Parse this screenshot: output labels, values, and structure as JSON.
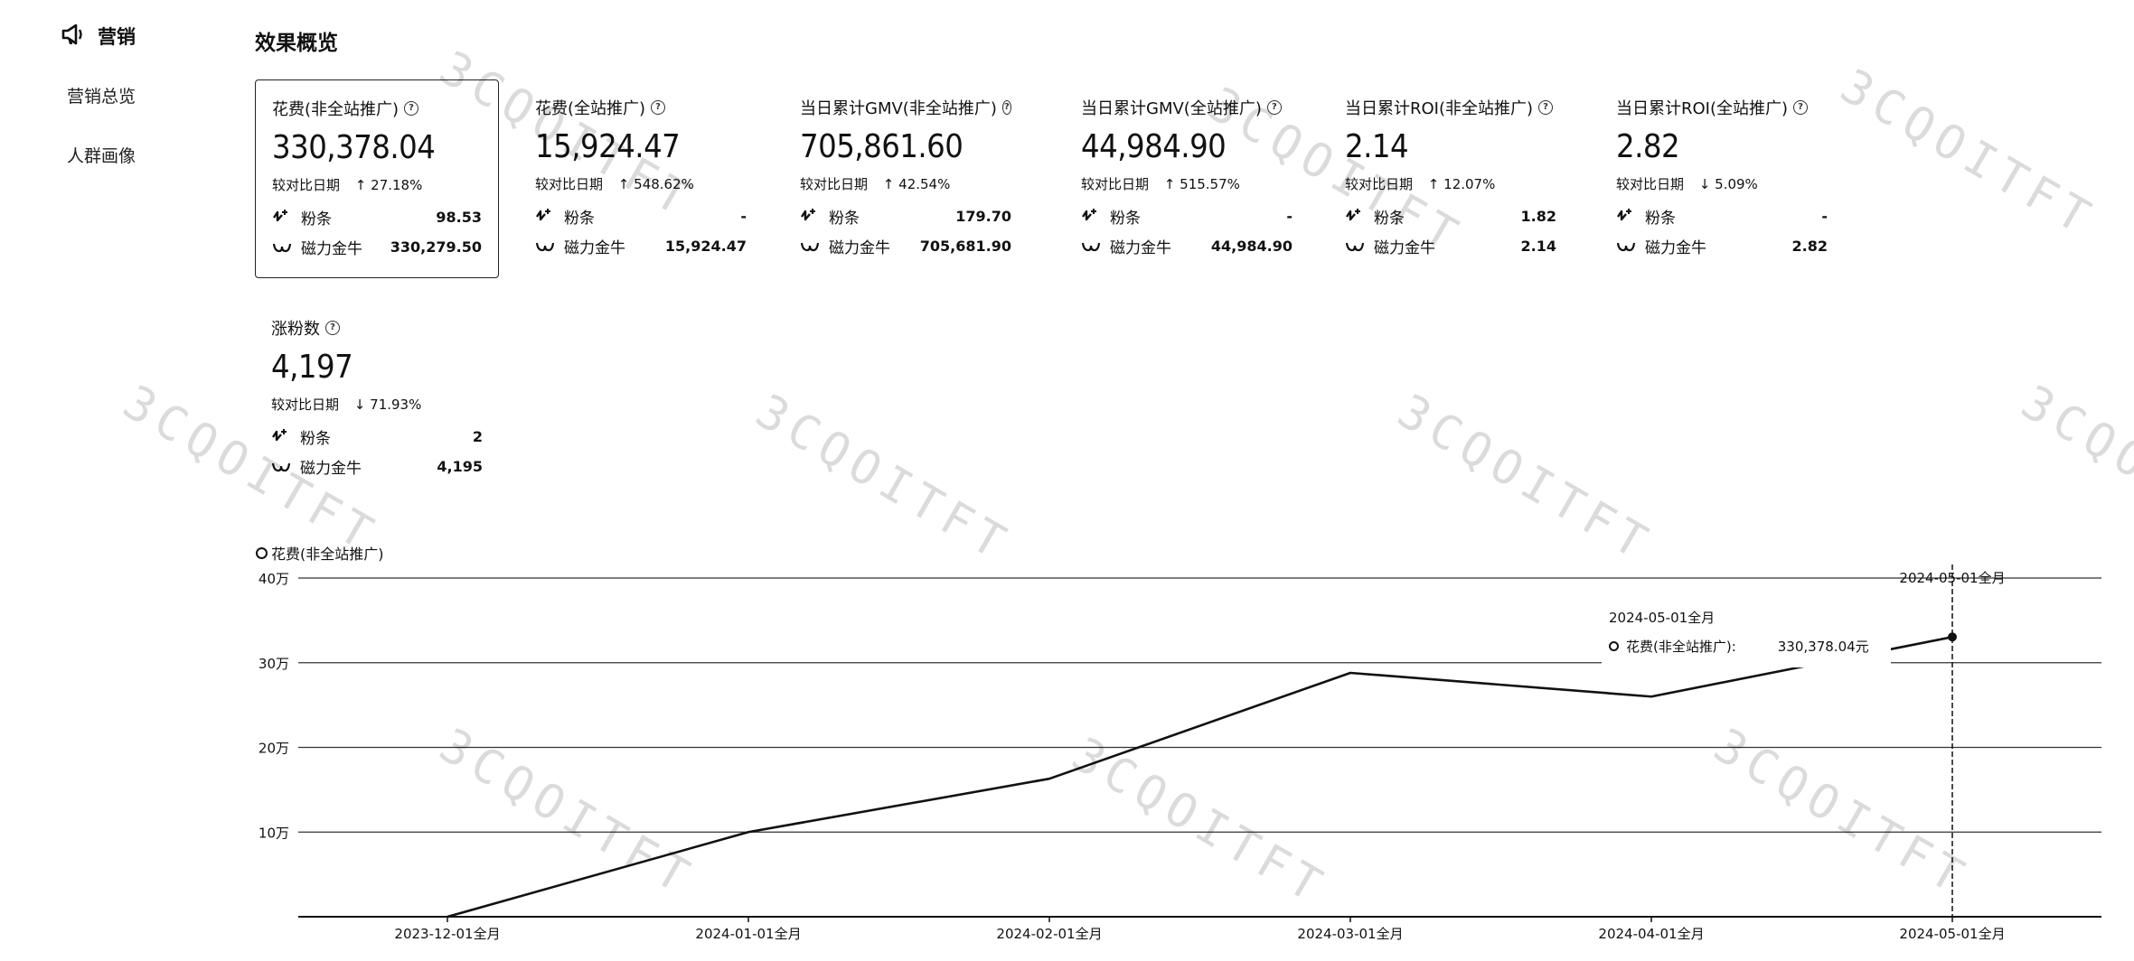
{
  "sidebar": {
    "title": "营销",
    "items": [
      {
        "label": "营销总览"
      },
      {
        "label": "人群画像"
      }
    ]
  },
  "section_title": "效果概览",
  "cards": [
    {
      "title": "花费(非全站推广)",
      "value": "330,378.04",
      "compare_label": "较对比日期",
      "trend": "up",
      "change": "27.18%",
      "rows": [
        {
          "label": "粉条",
          "value": "98.53"
        },
        {
          "label": "磁力金牛",
          "value": "330,279.50"
        }
      ],
      "selected": true
    },
    {
      "title": "花费(全站推广)",
      "value": "15,924.47",
      "compare_label": "较对比日期",
      "trend": "up",
      "change": "548.62%",
      "rows": [
        {
          "label": "粉条",
          "value": "-"
        },
        {
          "label": "磁力金牛",
          "value": "15,924.47"
        }
      ]
    },
    {
      "title": "当日累计GMV(非全站推广)",
      "value": "705,861.60",
      "compare_label": "较对比日期",
      "trend": "up",
      "change": "42.54%",
      "rows": [
        {
          "label": "粉条",
          "value": "179.70"
        },
        {
          "label": "磁力金牛",
          "value": "705,681.90"
        }
      ]
    },
    {
      "title": "当日累计GMV(全站推广)",
      "value": "44,984.90",
      "compare_label": "较对比日期",
      "trend": "up",
      "change": "515.57%",
      "rows": [
        {
          "label": "粉条",
          "value": "-"
        },
        {
          "label": "磁力金牛",
          "value": "44,984.90"
        }
      ]
    },
    {
      "title": "当日累计ROI(非全站推广)",
      "value": "2.14",
      "compare_label": "较对比日期",
      "trend": "up",
      "change": "12.07%",
      "rows": [
        {
          "label": "粉条",
          "value": "1.82"
        },
        {
          "label": "磁力金牛",
          "value": "2.14"
        }
      ]
    },
    {
      "title": "当日累计ROI(全站推广)",
      "value": "2.82",
      "compare_label": "较对比日期",
      "trend": "down",
      "change": "5.09%",
      "rows": [
        {
          "label": "粉条",
          "value": "-"
        },
        {
          "label": "磁力金牛",
          "value": "2.82"
        }
      ]
    },
    {
      "title": "涨粉数",
      "value": "4,197",
      "compare_label": "较对比日期",
      "trend": "down",
      "change": "71.93%",
      "rows": [
        {
          "label": "粉条",
          "value": "2"
        },
        {
          "label": "磁力金牛",
          "value": "4,195"
        }
      ]
    }
  ],
  "arrows": {
    "up": "↑",
    "down": "↓"
  },
  "chart_data": {
    "type": "line",
    "series": [
      {
        "name": "花费(非全站推广)",
        "values": [
          0,
          100000,
          163000,
          288000,
          260000,
          330378.04
        ]
      }
    ],
    "x": [
      "2023-12-01全月",
      "2024-01-01全月",
      "2024-02-01全月",
      "2024-03-01全月",
      "2024-04-01全月",
      "2024-05-01全月"
    ],
    "y_ticks": [
      {
        "value": 100000,
        "label": "10万"
      },
      {
        "value": 200000,
        "label": "20万"
      },
      {
        "value": 300000,
        "label": "30万"
      },
      {
        "value": 400000,
        "label": "40万"
      }
    ],
    "ylim": [
      0,
      400000
    ],
    "grid": true,
    "legend_position": "top-left",
    "crosshair_label": "2024-05-01全月",
    "tooltip": {
      "date": "2024-05-01全月",
      "series_name": "花费(非全站推广):",
      "value": "330,378.04元"
    }
  },
  "colors": {
    "line": "#111111",
    "grid": "#333333"
  },
  "watermark_text": "3CQOITFT"
}
